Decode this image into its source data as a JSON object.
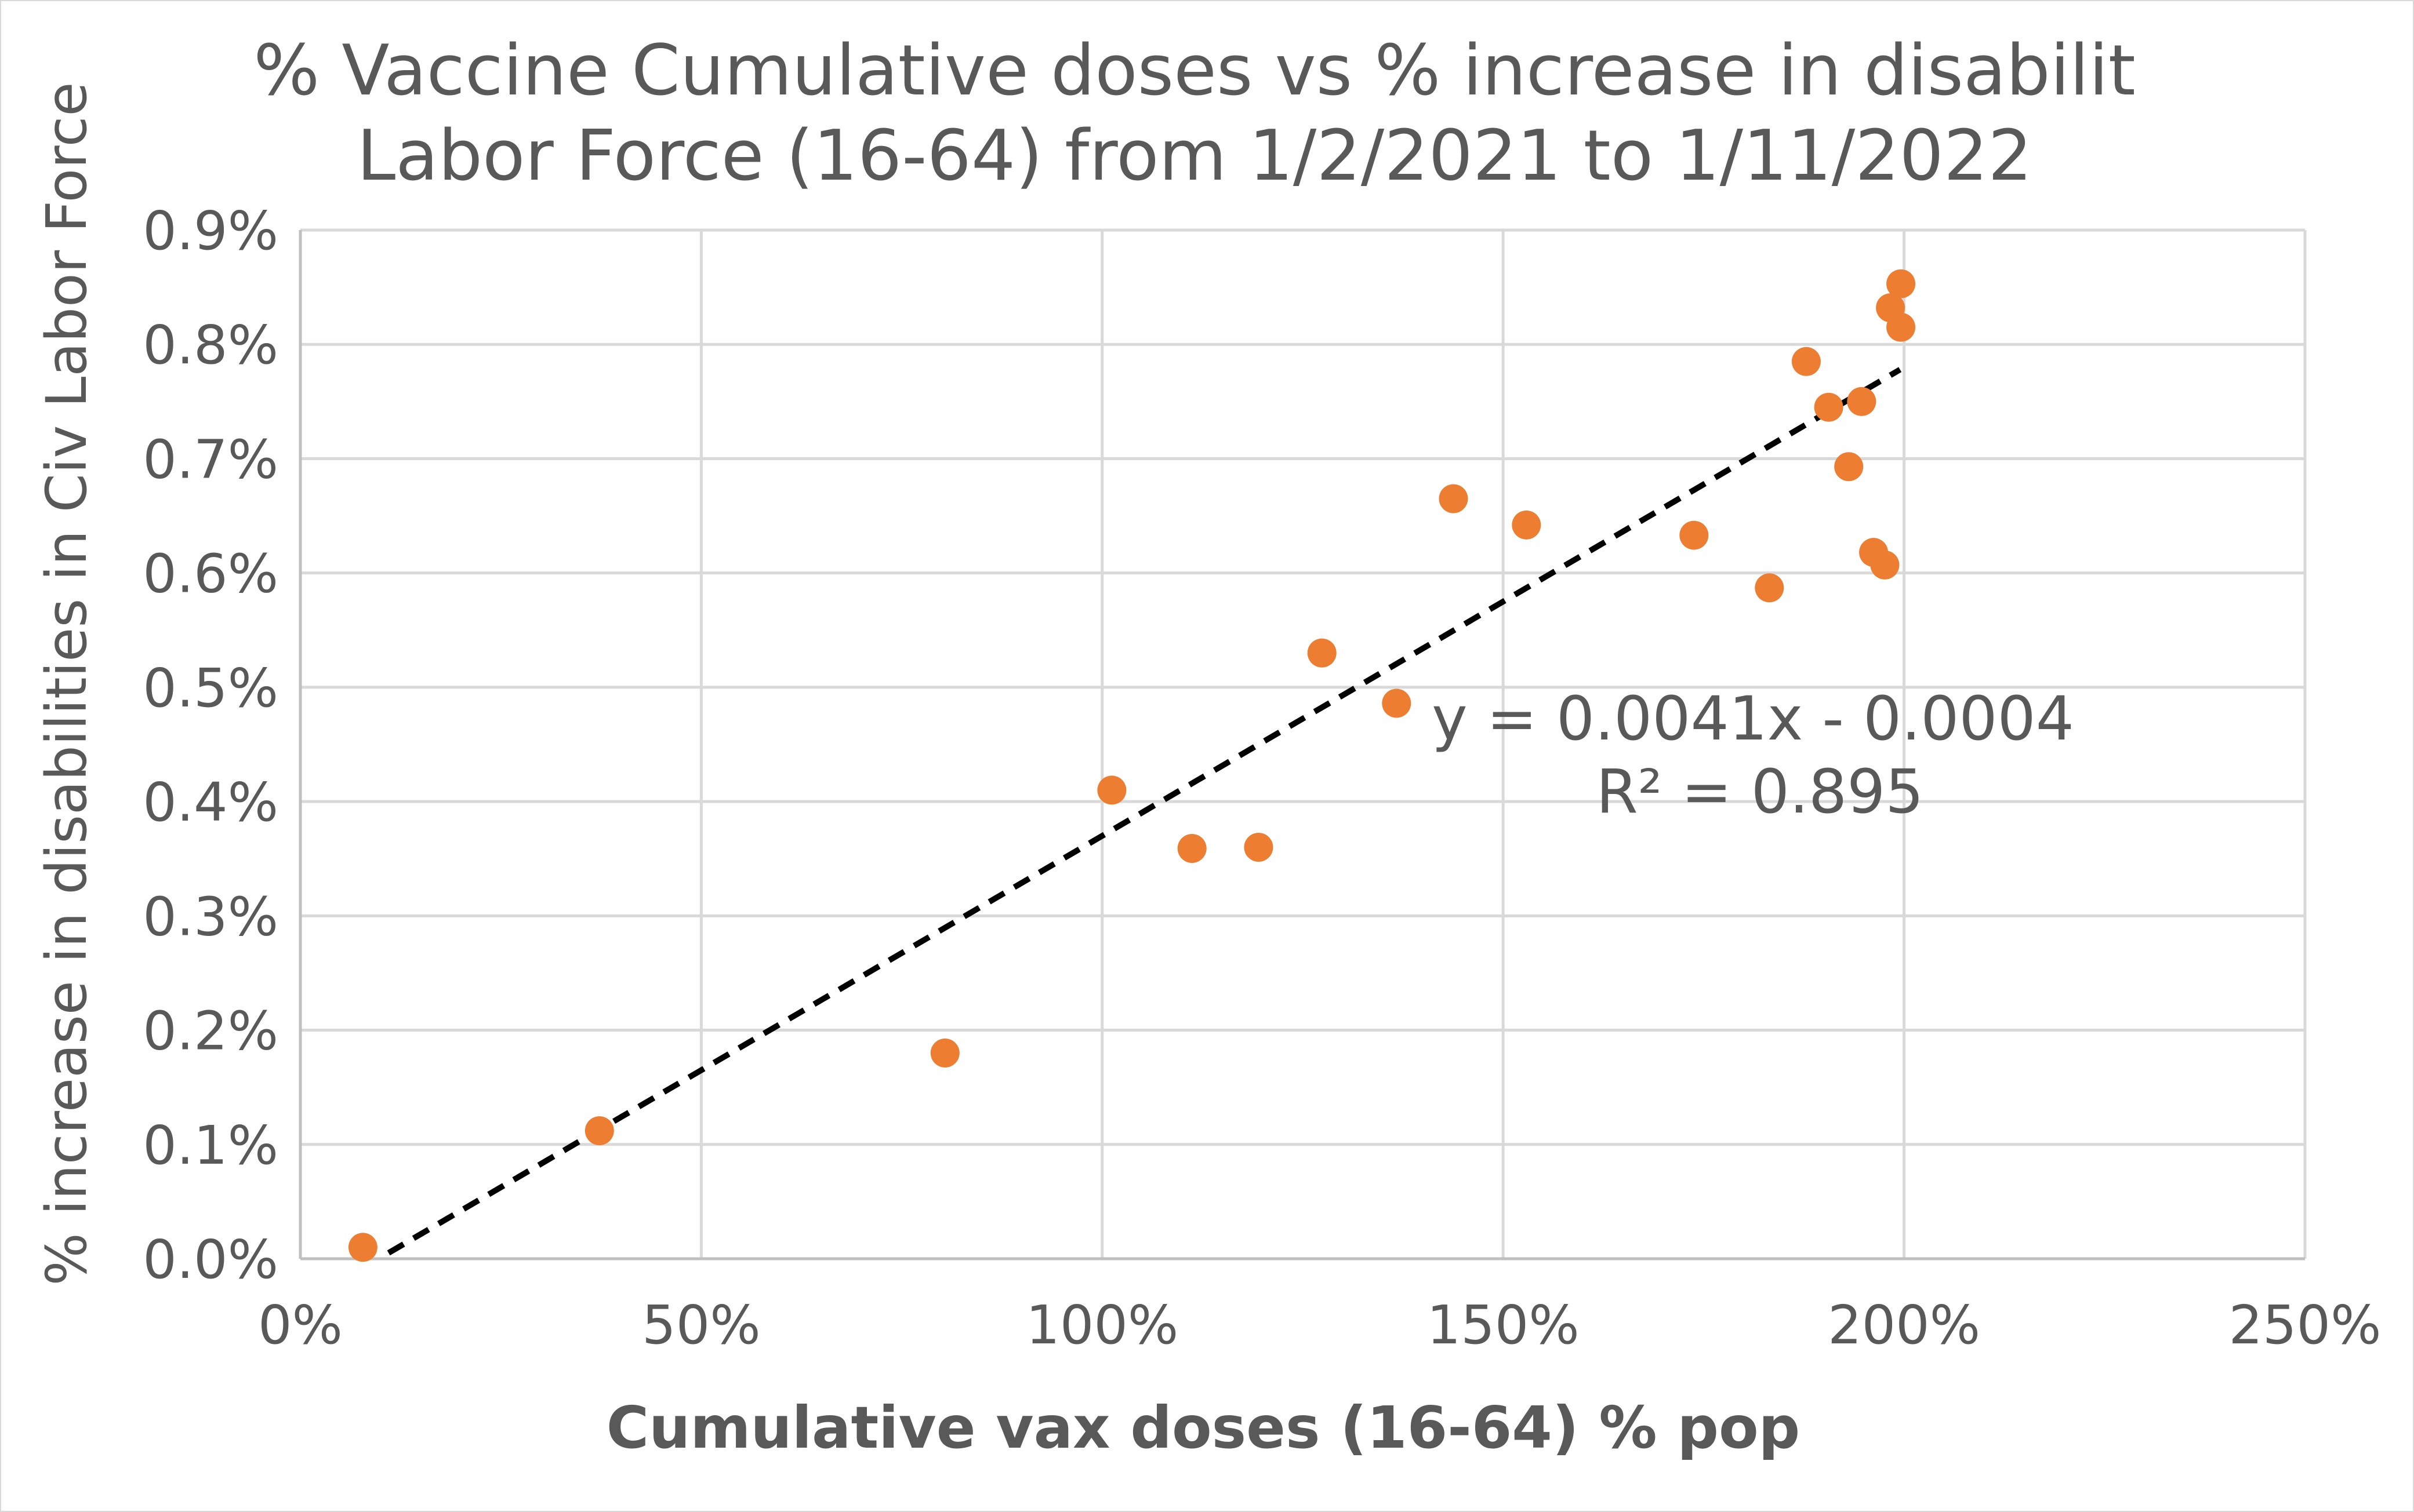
{
  "chart_data": {
    "type": "scatter",
    "title_lines": [
      "% Vaccine Cumulative doses vs % increase in disabilit",
      "Labor Force (16-64) from 1/2/2021 to 1/11/2022"
    ],
    "xlabel": "Cumulative vax doses (16-64) % pop",
    "ylabel": "% increase in disabilities in Civ Labor Force",
    "xlim": [
      0,
      2.5
    ],
    "ylim": [
      0,
      0.009
    ],
    "x_ticks": [
      0,
      0.5,
      1.0,
      1.5,
      2.0,
      2.5
    ],
    "x_tick_labels": [
      "0%",
      "50%",
      "100%",
      "150%",
      "200%",
      "250%"
    ],
    "y_ticks": [
      0,
      0.001,
      0.002,
      0.003,
      0.004,
      0.005,
      0.006,
      0.007,
      0.008,
      0.009
    ],
    "y_tick_labels": [
      "0.0%",
      "0.1%",
      "0.2%",
      "0.3%",
      "0.4%",
      "0.5%",
      "0.6%",
      "0.7%",
      "0.8%",
      "0.9%"
    ],
    "grid": true,
    "legend": "none",
    "series": [
      {
        "color": "#ed7d31",
        "points": [
          [
            0.078,
            0.0001
          ],
          [
            0.373,
            0.00112
          ],
          [
            0.804,
            0.0018
          ],
          [
            1.012,
            0.0041
          ],
          [
            1.112,
            0.00359
          ],
          [
            1.195,
            0.0036
          ],
          [
            1.274,
            0.0053
          ],
          [
            1.367,
            0.00486
          ],
          [
            1.438,
            0.00665
          ],
          [
            1.529,
            0.00642
          ],
          [
            1.738,
            0.00633
          ],
          [
            1.832,
            0.00587
          ],
          [
            1.878,
            0.00785
          ],
          [
            1.906,
            0.00745
          ],
          [
            1.931,
            0.00693
          ],
          [
            1.947,
            0.0075
          ],
          [
            1.962,
            0.00618
          ],
          [
            1.976,
            0.00607
          ],
          [
            1.983,
            0.00832
          ],
          [
            1.996,
            0.00853
          ],
          [
            1.996,
            0.00815
          ]
        ]
      }
    ],
    "trendline": {
      "style": "dashed",
      "color": "#000000",
      "slope": 0.0041,
      "intercept": -0.0004,
      "x_range": [
        0.11,
        1.995
      ]
    },
    "annotation": {
      "equation": "y = 0.0041x - 0.0004",
      "r_squared": "R² = 0.895"
    }
  }
}
